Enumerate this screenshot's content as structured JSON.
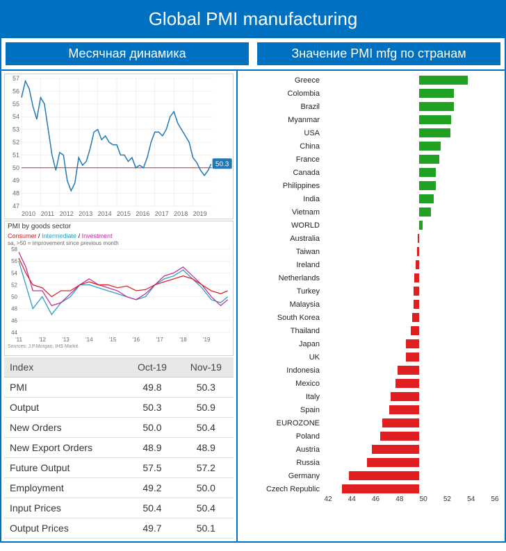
{
  "title": "Global PMI manufacturing",
  "subtitle_left": "Месячная динамика",
  "subtitle_right": "Значение PMI mfg по странам",
  "colors": {
    "header_bg": "#0070c0",
    "header_text": "#ffffff",
    "line_color": "#1f77b4",
    "ref_line": "#d62728",
    "grid": "#e0e0e0",
    "consumer": "#d62728",
    "intermediate": "#2ca0c0",
    "investment": "#c030a0",
    "bar_positive": "#22a022",
    "bar_negative": "#e02020"
  },
  "chart1": {
    "type": "line",
    "xlim": [
      2010,
      2020
    ],
    "ylim": [
      47,
      57
    ],
    "xticks": [
      2010,
      2011,
      2012,
      2013,
      2014,
      2015,
      2016,
      2017,
      2018,
      2019
    ],
    "yticks": [
      47,
      48,
      49,
      50,
      51,
      52,
      53,
      54,
      55,
      56,
      57
    ],
    "ref_y": 50,
    "callout_value": "50.3",
    "series": [
      [
        2010.0,
        55.5
      ],
      [
        2010.2,
        56.8
      ],
      [
        2010.4,
        56.2
      ],
      [
        2010.6,
        54.8
      ],
      [
        2010.8,
        53.8
      ],
      [
        2011.0,
        55.5
      ],
      [
        2011.2,
        55.0
      ],
      [
        2011.4,
        53.0
      ],
      [
        2011.6,
        51.0
      ],
      [
        2011.8,
        49.8
      ],
      [
        2012.0,
        51.2
      ],
      [
        2012.2,
        51.0
      ],
      [
        2012.4,
        49.0
      ],
      [
        2012.6,
        48.2
      ],
      [
        2012.8,
        48.8
      ],
      [
        2013.0,
        50.8
      ],
      [
        2013.2,
        50.2
      ],
      [
        2013.4,
        50.5
      ],
      [
        2013.6,
        51.5
      ],
      [
        2013.8,
        52.8
      ],
      [
        2014.0,
        53.0
      ],
      [
        2014.2,
        52.2
      ],
      [
        2014.4,
        52.5
      ],
      [
        2014.6,
        52.0
      ],
      [
        2014.8,
        51.8
      ],
      [
        2015.0,
        51.8
      ],
      [
        2015.2,
        51.0
      ],
      [
        2015.4,
        51.0
      ],
      [
        2015.6,
        50.5
      ],
      [
        2015.8,
        50.8
      ],
      [
        2016.0,
        50.0
      ],
      [
        2016.2,
        50.2
      ],
      [
        2016.4,
        50.0
      ],
      [
        2016.6,
        50.8
      ],
      [
        2016.8,
        52.0
      ],
      [
        2017.0,
        52.8
      ],
      [
        2017.2,
        52.8
      ],
      [
        2017.4,
        52.5
      ],
      [
        2017.6,
        53.0
      ],
      [
        2017.8,
        54.0
      ],
      [
        2018.0,
        54.4
      ],
      [
        2018.2,
        53.5
      ],
      [
        2018.4,
        53.0
      ],
      [
        2018.6,
        52.5
      ],
      [
        2018.8,
        52.0
      ],
      [
        2019.0,
        50.8
      ],
      [
        2019.2,
        50.4
      ],
      [
        2019.4,
        49.8
      ],
      [
        2019.6,
        49.4
      ],
      [
        2019.8,
        49.8
      ],
      [
        2019.95,
        50.3
      ]
    ]
  },
  "chart2": {
    "type": "line",
    "title": "PMI by goods sector",
    "legend": [
      {
        "label": "Consumer",
        "color": "#d62728"
      },
      {
        "label": "Intermediate",
        "color": "#2ca0c0"
      },
      {
        "label": "Investment",
        "color": "#c030a0"
      }
    ],
    "note": "sa, >50 = improvement since previous month",
    "source": "Sources: J.P.Morgan, IHS Markit.",
    "xlim": [
      2011,
      2020
    ],
    "ylim": [
      44,
      58
    ],
    "xticks": [
      "'11",
      "'12",
      "'13",
      "'14",
      "'15",
      "'16",
      "'17",
      "'18",
      "'19"
    ],
    "yticks": [
      44,
      46,
      48,
      50,
      52,
      54,
      56,
      58
    ],
    "consumer": [
      [
        2011,
        56.5
      ],
      [
        2011.3,
        54
      ],
      [
        2011.6,
        52
      ],
      [
        2012,
        51.5
      ],
      [
        2012.4,
        50
      ],
      [
        2012.8,
        51
      ],
      [
        2013.2,
        51
      ],
      [
        2013.6,
        52
      ],
      [
        2014,
        52.5
      ],
      [
        2014.4,
        52
      ],
      [
        2014.8,
        52
      ],
      [
        2015.2,
        51.5
      ],
      [
        2015.6,
        51.8
      ],
      [
        2016,
        51
      ],
      [
        2016.4,
        51.2
      ],
      [
        2016.8,
        52
      ],
      [
        2017.2,
        52.5
      ],
      [
        2017.6,
        53
      ],
      [
        2018,
        53.5
      ],
      [
        2018.4,
        53
      ],
      [
        2018.8,
        52
      ],
      [
        2019.2,
        51
      ],
      [
        2019.6,
        50.5
      ],
      [
        2019.9,
        51
      ]
    ],
    "intermediate": [
      [
        2011,
        56
      ],
      [
        2011.3,
        52
      ],
      [
        2011.6,
        48
      ],
      [
        2012,
        50
      ],
      [
        2012.4,
        47
      ],
      [
        2012.8,
        49
      ],
      [
        2013.2,
        50
      ],
      [
        2013.6,
        52
      ],
      [
        2014,
        52
      ],
      [
        2014.4,
        51.5
      ],
      [
        2014.8,
        51
      ],
      [
        2015.2,
        50.5
      ],
      [
        2015.6,
        50
      ],
      [
        2016,
        49.5
      ],
      [
        2016.4,
        50
      ],
      [
        2016.8,
        52
      ],
      [
        2017.2,
        53
      ],
      [
        2017.6,
        53.5
      ],
      [
        2018,
        54.5
      ],
      [
        2018.4,
        53
      ],
      [
        2018.8,
        51.5
      ],
      [
        2019.2,
        49.5
      ],
      [
        2019.6,
        49
      ],
      [
        2019.9,
        50
      ]
    ],
    "investment": [
      [
        2011,
        57.5
      ],
      [
        2011.3,
        55
      ],
      [
        2011.6,
        51
      ],
      [
        2012,
        51
      ],
      [
        2012.4,
        48.5
      ],
      [
        2012.8,
        49
      ],
      [
        2013.2,
        50.5
      ],
      [
        2013.6,
        52
      ],
      [
        2014,
        53
      ],
      [
        2014.4,
        52
      ],
      [
        2014.8,
        51.5
      ],
      [
        2015.2,
        51
      ],
      [
        2015.6,
        50
      ],
      [
        2016,
        49.5
      ],
      [
        2016.4,
        50.5
      ],
      [
        2016.8,
        52
      ],
      [
        2017.2,
        53.5
      ],
      [
        2017.6,
        54
      ],
      [
        2018,
        55
      ],
      [
        2018.4,
        53.5
      ],
      [
        2018.8,
        52
      ],
      [
        2019.2,
        50
      ],
      [
        2019.6,
        48.5
      ],
      [
        2019.9,
        49.5
      ]
    ]
  },
  "table": {
    "columns": [
      "Index",
      "Oct-19",
      "Nov-19"
    ],
    "rows": [
      [
        "PMI",
        "49.8",
        "50.3"
      ],
      [
        "Output",
        "50.3",
        "50.9"
      ],
      [
        "New Orders",
        "50.0",
        "50.4"
      ],
      [
        "New Export Orders",
        "48.9",
        "48.9"
      ],
      [
        "Future Output",
        "57.5",
        "57.2"
      ],
      [
        "Employment",
        "49.2",
        "50.0"
      ],
      [
        "Input Prices",
        "50.4",
        "50.4"
      ],
      [
        "Output Prices",
        "49.7",
        "50.1"
      ]
    ]
  },
  "hbar": {
    "type": "bar_horizontal",
    "xlim": [
      42,
      56
    ],
    "xticks": [
      42,
      44,
      46,
      48,
      50,
      52,
      54,
      56
    ],
    "ref_x": 50,
    "data": [
      {
        "label": "Greece",
        "value": 54.1
      },
      {
        "label": "Colombia",
        "value": 52.9
      },
      {
        "label": "Brazil",
        "value": 52.9
      },
      {
        "label": "Myanmar",
        "value": 52.7
      },
      {
        "label": "USA",
        "value": 52.6
      },
      {
        "label": "China",
        "value": 51.8
      },
      {
        "label": "France",
        "value": 51.7
      },
      {
        "label": "Canada",
        "value": 51.4
      },
      {
        "label": "Philippines",
        "value": 51.4
      },
      {
        "label": "India",
        "value": 51.2
      },
      {
        "label": "Vietnam",
        "value": 51.0
      },
      {
        "label": "WORLD",
        "value": 50.3
      },
      {
        "label": "Australia",
        "value": 49.9
      },
      {
        "label": "Taiwan",
        "value": 49.8
      },
      {
        "label": "Ireland",
        "value": 49.7
      },
      {
        "label": "Netherlands",
        "value": 49.6
      },
      {
        "label": "Turkey",
        "value": 49.5
      },
      {
        "label": "Malaysia",
        "value": 49.5
      },
      {
        "label": "South Korea",
        "value": 49.4
      },
      {
        "label": "Thailand",
        "value": 49.3
      },
      {
        "label": "Japan",
        "value": 48.9
      },
      {
        "label": "UK",
        "value": 48.9
      },
      {
        "label": "Indonesia",
        "value": 48.2
      },
      {
        "label": "Mexico",
        "value": 48.0
      },
      {
        "label": "Italy",
        "value": 47.6
      },
      {
        "label": "Spain",
        "value": 47.5
      },
      {
        "label": "EUROZONE",
        "value": 46.9
      },
      {
        "label": "Poland",
        "value": 46.7
      },
      {
        "label": "Austria",
        "value": 46.0
      },
      {
        "label": "Russia",
        "value": 45.6
      },
      {
        "label": "Germany",
        "value": 44.1
      },
      {
        "label": "Czech Republic",
        "value": 43.5
      }
    ]
  }
}
